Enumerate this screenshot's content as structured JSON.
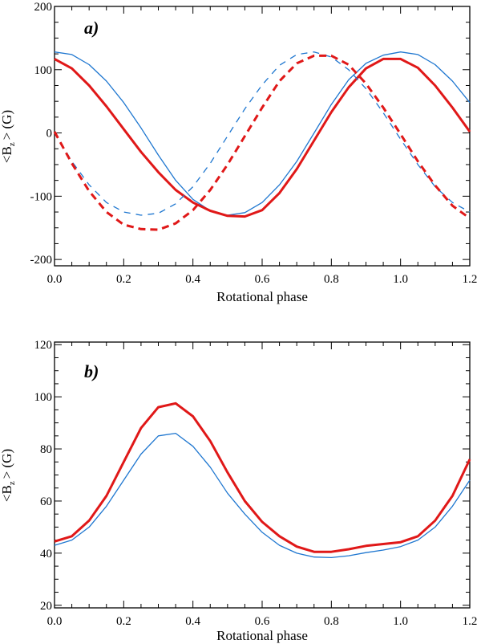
{
  "chart_data": [
    {
      "type": "line",
      "panel_label": "a)",
      "xlabel": "Rotational phase",
      "ylabel": {
        "prefix": "<B",
        "subscript": "z",
        "suffix": "> (G)"
      },
      "xlim": [
        0.0,
        1.2
      ],
      "ylim": [
        -210,
        200
      ],
      "xticks": [
        "0.0",
        "0.2",
        "0.4",
        "0.6",
        "0.8",
        "1.0",
        "1.2"
      ],
      "yticks": [
        "-200",
        "-100",
        "0",
        "100",
        "200"
      ],
      "x": [
        0.0,
        0.05,
        0.1,
        0.15,
        0.2,
        0.25,
        0.3,
        0.35,
        0.4,
        0.45,
        0.5,
        0.55,
        0.6,
        0.65,
        0.7,
        0.75,
        0.8,
        0.85,
        0.9,
        0.95,
        1.0,
        1.05,
        1.1,
        1.15,
        1.2
      ],
      "series": [
        {
          "name": "blue solid",
          "color": "#1f77d0",
          "style": "solid",
          "width": "thin",
          "values": [
            128,
            124,
            108,
            82,
            48,
            8,
            -35,
            -75,
            -105,
            -123,
            -130,
            -126,
            -110,
            -82,
            -45,
            0,
            45,
            84,
            110,
            123,
            128,
            124,
            108,
            82,
            48
          ]
        },
        {
          "name": "red solid",
          "color": "#e01818",
          "style": "solid",
          "width": "thick",
          "values": [
            117,
            102,
            75,
            42,
            6,
            -30,
            -62,
            -90,
            -110,
            -123,
            -131,
            -132,
            -122,
            -95,
            -57,
            -12,
            33,
            72,
            102,
            117,
            117,
            103,
            75,
            40,
            2
          ]
        },
        {
          "name": "blue dashed",
          "color": "#1f77d0",
          "style": "dashed",
          "width": "thin",
          "values": [
            2,
            -45,
            -82,
            -110,
            -125,
            -130,
            -127,
            -112,
            -85,
            -48,
            -5,
            38,
            76,
            107,
            124,
            128,
            120,
            100,
            70,
            32,
            -10,
            -50,
            -85,
            -110,
            -125
          ]
        },
        {
          "name": "red dashed",
          "color": "#e01818",
          "style": "dashed",
          "width": "thick",
          "values": [
            2,
            -48,
            -92,
            -125,
            -145,
            -152,
            -153,
            -143,
            -122,
            -90,
            -50,
            -5,
            40,
            82,
            110,
            122,
            122,
            108,
            78,
            40,
            -2,
            -45,
            -83,
            -115,
            -135
          ]
        }
      ]
    },
    {
      "type": "line",
      "panel_label": "b)",
      "xlabel": "Rotational phase",
      "ylabel": {
        "prefix": "<B",
        "subscript": "z",
        "suffix": "> (G)"
      },
      "xlim": [
        0.0,
        1.2
      ],
      "ylim": [
        19,
        121
      ],
      "xticks": [
        "0.0",
        "0.2",
        "0.4",
        "0.6",
        "0.8",
        "1.0",
        "1.2"
      ],
      "yticks": [
        "20",
        "40",
        "60",
        "80",
        "100",
        "120"
      ],
      "x": [
        0.0,
        0.05,
        0.1,
        0.15,
        0.2,
        0.25,
        0.3,
        0.35,
        0.4,
        0.45,
        0.5,
        0.55,
        0.6,
        0.65,
        0.7,
        0.75,
        0.8,
        0.85,
        0.9,
        0.95,
        1.0,
        1.05,
        1.1,
        1.15,
        1.2
      ],
      "series": [
        {
          "name": "blue solid",
          "color": "#1f77d0",
          "style": "solid",
          "width": "thin",
          "values": [
            43,
            45,
            50,
            58,
            68,
            78,
            85,
            86,
            81,
            73,
            63,
            55,
            48,
            43,
            40,
            38.5,
            38.3,
            39,
            40.2,
            41.2,
            42.5,
            45,
            50,
            58,
            68
          ]
        },
        {
          "name": "red solid",
          "color": "#e01818",
          "style": "solid",
          "width": "thick",
          "values": [
            44.5,
            46.5,
            52.5,
            62,
            75,
            88,
            96,
            97.5,
            92.5,
            83,
            71,
            60,
            52,
            46.5,
            42.5,
            40.5,
            40.5,
            41.5,
            42.8,
            43.5,
            44.2,
            46.5,
            52.5,
            62,
            76
          ]
        }
      ]
    }
  ]
}
